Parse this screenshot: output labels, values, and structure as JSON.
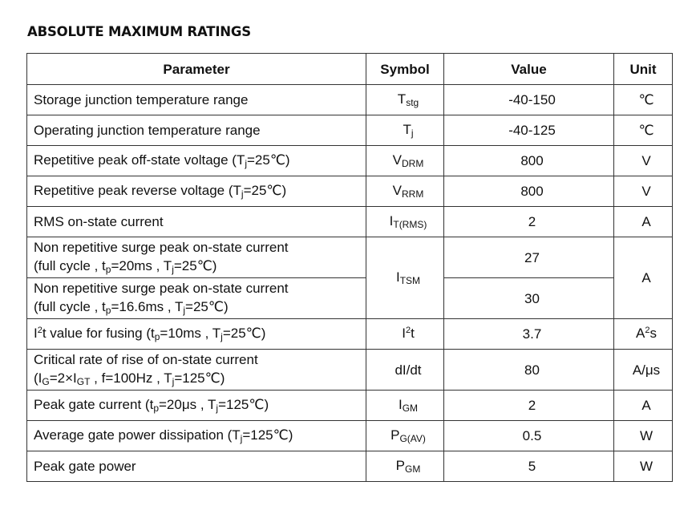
{
  "heading": "ABSOLUTE MAXIMUM RATINGS",
  "headers": {
    "parameter": "Parameter",
    "symbol": "Symbol",
    "value": "Value",
    "unit": "Unit"
  },
  "rows": {
    "storage": {
      "parameter": "Storage junction temperature range",
      "symbol_main": "T",
      "symbol_sub": "stg",
      "value": "-40-150",
      "unit": "℃"
    },
    "operating": {
      "parameter": "Operating junction temperature range",
      "symbol_main": "T",
      "symbol_sub": "j",
      "value": "-40-125",
      "unit": "℃"
    },
    "vdrm": {
      "param_a": "Repetitive peak off-state voltage (T",
      "param_sub": "j",
      "param_b": "=25℃)",
      "symbol_main": "V",
      "symbol_sub": "DRM",
      "value": "800",
      "unit": "V"
    },
    "vrrm": {
      "param_a": "Repetitive peak reverse voltage (T",
      "param_sub": "j",
      "param_b": "=25℃)",
      "symbol_main": "V",
      "symbol_sub": "RRM",
      "value": "800",
      "unit": "V"
    },
    "rms": {
      "parameter": "RMS on-state current",
      "symbol_main": "I",
      "symbol_sub": "T(RMS)",
      "value": "2",
      "unit": "A"
    },
    "itsm_a": {
      "line1": "Non repetitive surge peak on-state current",
      "l2_a": "(full cycle , t",
      "l2_sub1": "p",
      "l2_b": "=20ms , T",
      "l2_sub2": "j",
      "l2_c": "=25℃)",
      "value": "27"
    },
    "itsm_b": {
      "line1": "Non repetitive surge peak on-state current",
      "l2_a": "(full cycle , t",
      "l2_sub1": "p",
      "l2_b": "=16.6ms , T",
      "l2_sub2": "j",
      "l2_c": "=25℃)",
      "value": "30"
    },
    "itsm": {
      "symbol_main": "I",
      "symbol_sub": "TSM",
      "unit": "A"
    },
    "i2t": {
      "param_i": "I",
      "param_sup": "2",
      "param_a": "t value for fusing (t",
      "param_sub1": "p",
      "param_b": "=10ms , T",
      "param_sub2": "j",
      "param_c": "=25℃)",
      "symbol_main": "I",
      "symbol_sup": "2",
      "symbol_tail": "t",
      "value": "3.7",
      "unit_main": "A",
      "unit_sup": "2",
      "unit_tail": "s"
    },
    "didt": {
      "line1": "Critical rate of rise of on-state current",
      "l2_a": "(I",
      "l2_sub1": "G",
      "l2_b": "=2×I",
      "l2_sub2": "GT",
      "l2_c": " , f=100Hz , T",
      "l2_sub3": "j",
      "l2_d": "=125℃)",
      "symbol": "dI/dt",
      "value": "80",
      "unit": "A/μs"
    },
    "igm": {
      "param_a": "Peak gate current (t",
      "param_sub1": "p",
      "param_b": "=20μs , T",
      "param_sub2": "j",
      "param_c": "=125℃)",
      "symbol_main": "I",
      "symbol_sub": "GM",
      "value": "2",
      "unit": "A"
    },
    "pgav": {
      "param_a": "Average gate power dissipation (T",
      "param_sub": "j",
      "param_b": "=125℃)",
      "symbol_main": "P",
      "symbol_sub": "G(AV)",
      "value": "0.5",
      "unit": "W"
    },
    "pgm": {
      "parameter": "Peak gate power",
      "symbol_main": "P",
      "symbol_sub": "GM",
      "value": "5",
      "unit": "W"
    }
  }
}
